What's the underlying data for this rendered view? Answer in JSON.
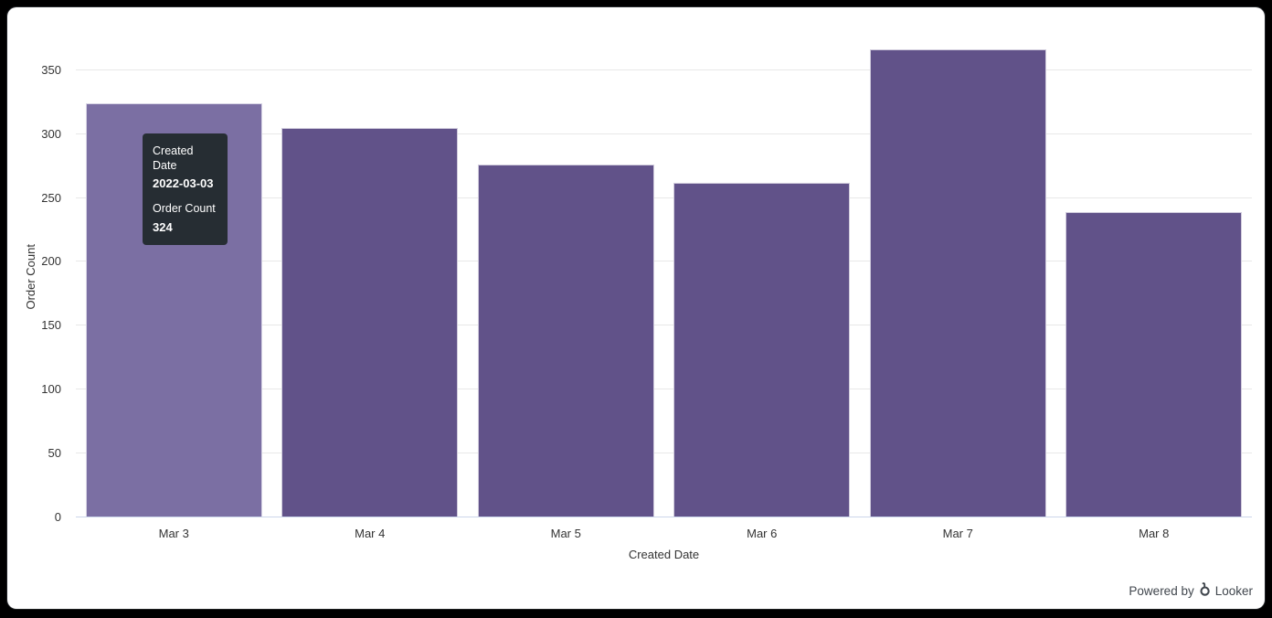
{
  "window": {
    "background": "#000000"
  },
  "card": {
    "background": "#ffffff"
  },
  "chart_data": {
    "type": "bar",
    "title": "",
    "categories": [
      "Mar 3",
      "Mar 4",
      "Mar 5",
      "Mar 6",
      "Mar 7",
      "Mar 8"
    ],
    "values": [
      324,
      305,
      276,
      262,
      366,
      239
    ],
    "xlabel": "Created Date",
    "ylabel": "Order Count",
    "y_ticks": [
      0,
      50,
      100,
      150,
      200,
      250,
      300,
      350
    ],
    "ylim": [
      0,
      377
    ],
    "grid": true,
    "legend_position": "none",
    "bar_color": "#615289",
    "bar_hover_color": "#7b6fa3",
    "hovered_index": 0,
    "gridline_color": "#e8e8e8",
    "axis_line_color": "#ccd6eb",
    "label_color": "#333333"
  },
  "tooltip": {
    "visible": true,
    "x_field_label": "Created Date",
    "x_value": "2022-03-03",
    "y_field_label": "Order Count",
    "y_value": "324",
    "background": "#262d33",
    "text_color": "#ffffff"
  },
  "footer": {
    "powered_by_label": "Powered by",
    "brand_label": "Looker",
    "logo_icon": "looker-logo",
    "text_color": "#40464d"
  }
}
